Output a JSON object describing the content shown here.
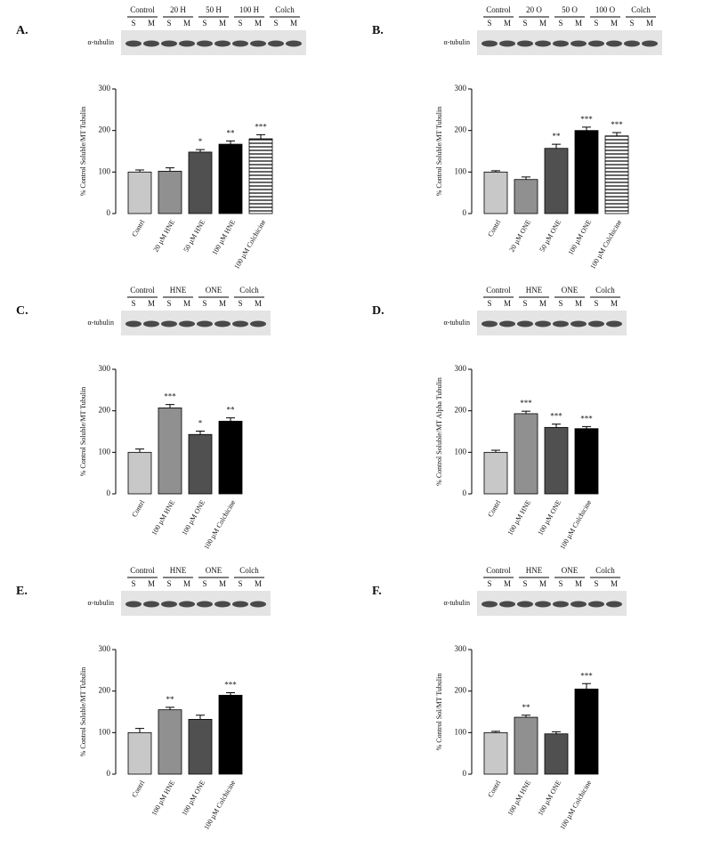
{
  "chart_data": [
    {
      "type": "bar",
      "panel": "A.",
      "blot_label": "α-tubulin",
      "blot_groups": [
        "Control",
        "20 H",
        "50 H",
        "100 H",
        "Colch"
      ],
      "lanes": [
        "S",
        "M"
      ],
      "y_label": "% Control Soluble/MT Tubulin",
      "categories": [
        "Contrl",
        "20 µM HNE",
        "50 µM HNE",
        "100 µM HNE",
        "100 µM Colchicine"
      ],
      "values": [
        100,
        102,
        148,
        167,
        180
      ],
      "errors": [
        5,
        8,
        6,
        8,
        10
      ],
      "significance": [
        null,
        null,
        "*",
        "**",
        "***"
      ],
      "colors": [
        "#c8c8c8",
        "#909090",
        "#505050",
        "#000000",
        "#ffffff"
      ],
      "hatch": [
        false,
        false,
        false,
        false,
        true
      ],
      "ylim": [
        0,
        300
      ],
      "yticks": [
        0,
        100,
        200,
        300
      ],
      "grid": false
    },
    {
      "type": "bar",
      "panel": "B.",
      "blot_label": "α-tubulin",
      "blot_groups": [
        "Control",
        "20 O",
        "50 O",
        "100 O",
        "Colch"
      ],
      "lanes": [
        "S",
        "M"
      ],
      "y_label": "% Control Soluble/MT Tubulin",
      "categories": [
        "Contrl",
        "20 µM ONE",
        "50 µM ONE",
        "100 µM ONE",
        "100 µM Colchicine"
      ],
      "values": [
        100,
        82,
        157,
        200,
        187
      ],
      "errors": [
        3,
        6,
        10,
        8,
        8
      ],
      "significance": [
        null,
        null,
        "**",
        "***",
        "***"
      ],
      "colors": [
        "#c8c8c8",
        "#909090",
        "#505050",
        "#000000",
        "#ffffff"
      ],
      "hatch": [
        false,
        false,
        false,
        false,
        true
      ],
      "ylim": [
        0,
        300
      ],
      "yticks": [
        0,
        100,
        200,
        300
      ],
      "grid": false
    },
    {
      "type": "bar",
      "panel": "C.",
      "blot_label": "α-tubulin",
      "blot_groups": [
        "Control",
        "HNE",
        "ONE",
        "Colch"
      ],
      "lanes": [
        "S",
        "M"
      ],
      "y_label": "% Control Soluble/MT Tubulin",
      "categories": [
        "Contrl",
        "100 µM HNE",
        "100 µM ONE",
        "100 µM Colchicine"
      ],
      "values": [
        100,
        207,
        143,
        175
      ],
      "errors": [
        8,
        8,
        8,
        8
      ],
      "significance": [
        null,
        "***",
        "*",
        "**"
      ],
      "colors": [
        "#c8c8c8",
        "#909090",
        "#505050",
        "#000000"
      ],
      "hatch": [
        false,
        false,
        false,
        false
      ],
      "ylim": [
        0,
        300
      ],
      "yticks": [
        0,
        100,
        200,
        300
      ],
      "grid": false
    },
    {
      "type": "bar",
      "panel": "D.",
      "blot_label": "α-tubulin",
      "blot_groups": [
        "Control",
        "HNE",
        "ONE",
        "Colch"
      ],
      "lanes": [
        "S",
        "M"
      ],
      "y_label": "% Control Soluble/MT Alpha Tubulin",
      "categories": [
        "Contrl",
        "100 µM HNE",
        "100 µM ONE",
        "100 µM Colchicine"
      ],
      "values": [
        100,
        193,
        160,
        157
      ],
      "errors": [
        5,
        6,
        8,
        5
      ],
      "significance": [
        null,
        "***",
        "***",
        "***"
      ],
      "colors": [
        "#c8c8c8",
        "#909090",
        "#505050",
        "#000000"
      ],
      "hatch": [
        false,
        false,
        false,
        false
      ],
      "ylim": [
        0,
        300
      ],
      "yticks": [
        0,
        100,
        200,
        300
      ],
      "grid": false
    },
    {
      "type": "bar",
      "panel": "E.",
      "blot_label": "α-tubulin",
      "blot_groups": [
        "Control",
        "HNE",
        "ONE",
        "Colch"
      ],
      "lanes": [
        "S",
        "M"
      ],
      "y_label": "% Control Soluble/MT Tubulin",
      "categories": [
        "Contrl",
        "100 µM HNE",
        "100 µM ONE",
        "100 µM Colchicine"
      ],
      "values": [
        100,
        155,
        132,
        190
      ],
      "errors": [
        10,
        6,
        10,
        6
      ],
      "significance": [
        null,
        "**",
        null,
        "***"
      ],
      "colors": [
        "#c8c8c8",
        "#909090",
        "#505050",
        "#000000"
      ],
      "hatch": [
        false,
        false,
        false,
        false
      ],
      "ylim": [
        0,
        300
      ],
      "yticks": [
        0,
        100,
        200,
        300
      ],
      "grid": false
    },
    {
      "type": "bar",
      "panel": "F.",
      "blot_label": "α-tubulin",
      "blot_groups": [
        "Control",
        "HNE",
        "ONE",
        "Colch"
      ],
      "lanes": [
        "S",
        "M"
      ],
      "y_label": "% Control Sol/MT Tubulin",
      "categories": [
        "Contrl",
        "100 µM HNE",
        "100 µM ONE",
        "100 µM Colchicine"
      ],
      "values": [
        100,
        137,
        97,
        205
      ],
      "errors": [
        3,
        5,
        5,
        13
      ],
      "significance": [
        null,
        "**",
        null,
        "***"
      ],
      "colors": [
        "#c8c8c8",
        "#909090",
        "#505050",
        "#000000"
      ],
      "hatch": [
        false,
        false,
        false,
        false
      ],
      "ylim": [
        0,
        300
      ],
      "yticks": [
        0,
        100,
        200,
        300
      ],
      "grid": false
    }
  ]
}
